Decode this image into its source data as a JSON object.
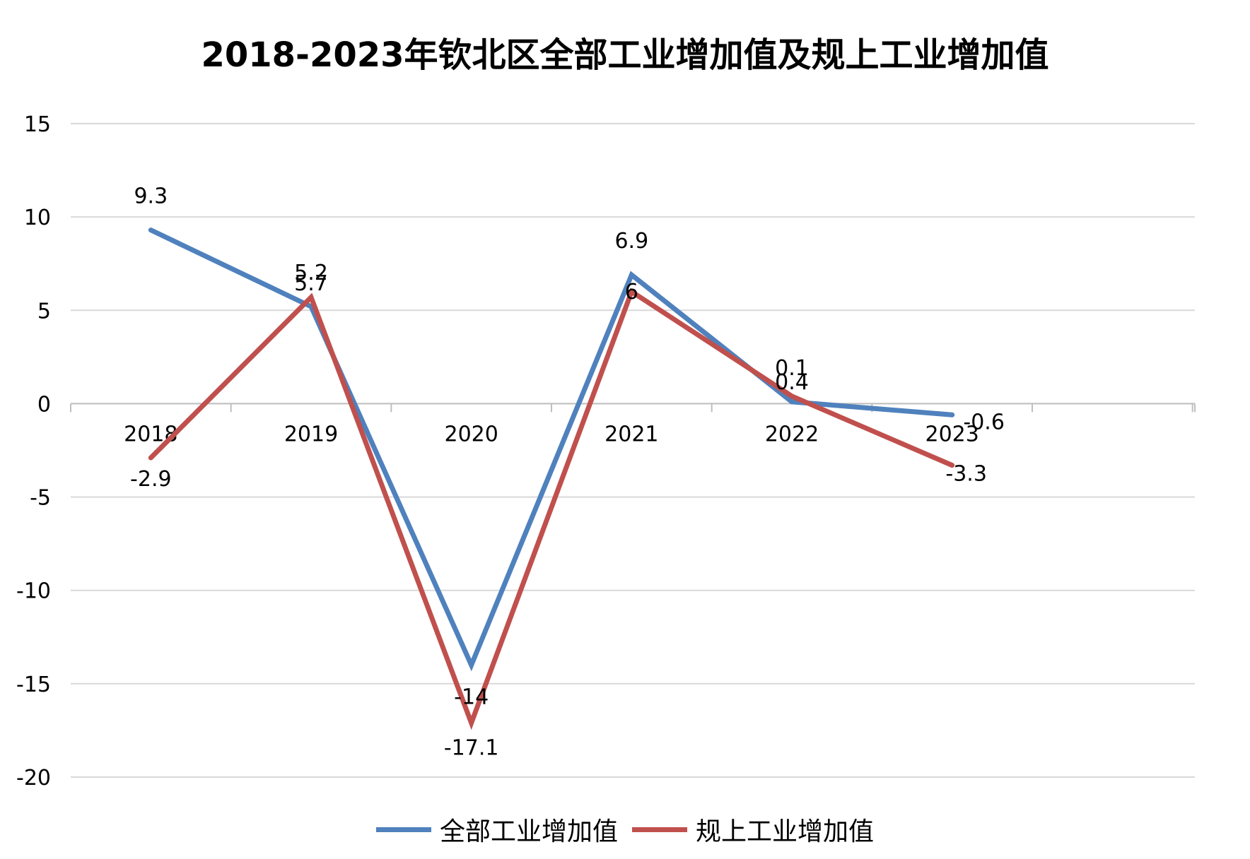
{
  "chart_data": {
    "type": "line",
    "title": "2018-2023年钦北区全部工业增加值及规上工业增加值",
    "categories": [
      "2018",
      "2019",
      "2020",
      "2021",
      "2022",
      "2023"
    ],
    "series": [
      {
        "name": "全部工业增加值",
        "values": [
          9.3,
          5.2,
          -14,
          6.9,
          0.1,
          -0.6
        ],
        "color": "#4F81BD"
      },
      {
        "name": "规上工业增加值",
        "values": [
          -2.9,
          5.7,
          -17.1,
          6,
          0.4,
          -3.3
        ],
        "color": "#C0504D"
      }
    ],
    "ylim": [
      -20,
      15
    ],
    "yticks": [
      "15",
      "10",
      "5",
      "0",
      "-5",
      "-10",
      "-15",
      "-20"
    ],
    "grid": true,
    "legend": "bottom"
  }
}
